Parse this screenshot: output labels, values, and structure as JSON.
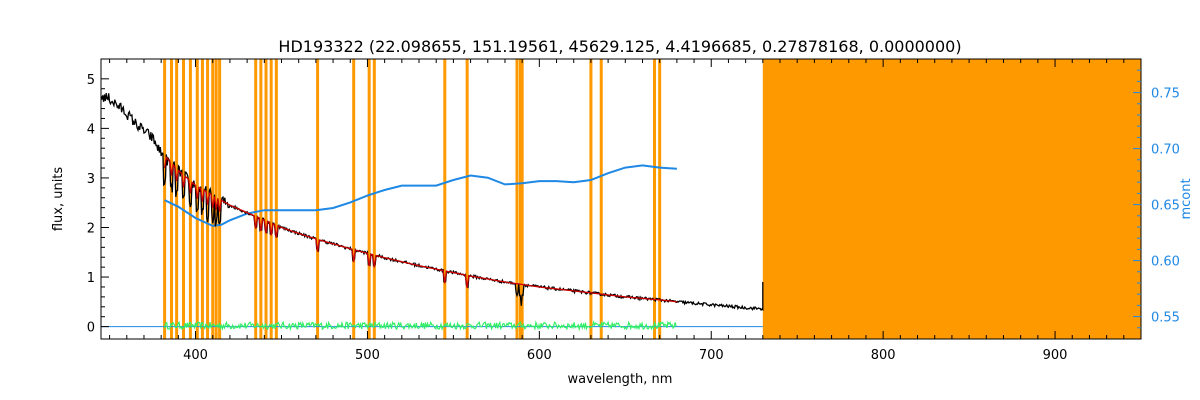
{
  "chart_data": {
    "type": "line",
    "title": "HD193322    (22.098655, 151.19561, 45629.125, 4.4196685, 0.27878168, 0.0000000)",
    "xlabel": "wavelength, nm",
    "ylabel": "flux, units",
    "ylabel_right": "mcont",
    "xlim": [
      345,
      950
    ],
    "ylim": [
      -0.25,
      5.4
    ],
    "ylim_right": [
      0.53,
      0.78
    ],
    "x_ticks": [
      400,
      500,
      600,
      700,
      800,
      900
    ],
    "y_ticks": [
      0,
      1,
      2,
      3,
      4,
      5
    ],
    "y_ticks_right": [
      0.55,
      0.6,
      0.65,
      0.7,
      0.75
    ],
    "colors": {
      "observed": "#000000",
      "model": "#cc0000",
      "residual": "#33ee66",
      "continuum": "#1e88e5",
      "mask": "#ff9900"
    },
    "masked_region": [
      730,
      950
    ],
    "mask_lines": [
      382,
      386,
      389,
      393,
      397,
      401,
      404,
      407,
      410,
      412,
      414,
      435,
      438,
      441,
      444,
      447,
      471,
      492,
      501,
      504,
      545,
      558,
      587,
      589,
      590,
      630,
      636,
      667,
      670
    ],
    "series": [
      {
        "name": "observed",
        "x": [
          345,
          350,
          355,
          360,
          365,
          370,
          375,
          380,
          385,
          390,
          395,
          400,
          410,
          420,
          430,
          440,
          450,
          460,
          470,
          480,
          490,
          500,
          510,
          520,
          530,
          540,
          550,
          560,
          570,
          580,
          590,
          600,
          610,
          620,
          630,
          640,
          650,
          660,
          670,
          680,
          690,
          700,
          710,
          720,
          730
        ],
        "y": [
          4.65,
          4.6,
          4.45,
          4.3,
          4.1,
          3.95,
          3.8,
          3.5,
          3.3,
          3.15,
          3.0,
          2.85,
          2.65,
          2.45,
          2.3,
          2.15,
          2.0,
          1.88,
          1.77,
          1.67,
          1.57,
          1.48,
          1.39,
          1.31,
          1.23,
          1.16,
          1.09,
          1.02,
          0.96,
          0.9,
          0.85,
          0.8,
          0.76,
          0.72,
          0.68,
          0.64,
          0.6,
          0.57,
          0.54,
          0.5,
          0.47,
          0.44,
          0.41,
          0.38,
          0.36
        ]
      },
      {
        "name": "model",
        "x": [
          382,
          390,
          400,
          410,
          420,
          430,
          440,
          450,
          460,
          470,
          480,
          490,
          500,
          510,
          520,
          530,
          540,
          550,
          560,
          570,
          580,
          590,
          600,
          610,
          620,
          630,
          640,
          650,
          660,
          670,
          680
        ],
        "y": [
          3.45,
          3.15,
          2.85,
          2.65,
          2.45,
          2.3,
          2.15,
          2.0,
          1.88,
          1.77,
          1.67,
          1.57,
          1.48,
          1.39,
          1.31,
          1.23,
          1.16,
          1.09,
          1.02,
          0.96,
          0.9,
          0.85,
          0.8,
          0.76,
          0.72,
          0.68,
          0.64,
          0.6,
          0.57,
          0.54,
          0.5
        ]
      },
      {
        "name": "residual",
        "x": [
          382,
          680
        ],
        "y": [
          0.02,
          0.02
        ]
      },
      {
        "name": "continuum",
        "axis": "right",
        "x": [
          382,
          390,
          400,
          410,
          415,
          420,
          430,
          440,
          450,
          460,
          470,
          480,
          490,
          500,
          510,
          520,
          530,
          540,
          550,
          560,
          570,
          580,
          590,
          600,
          610,
          620,
          630,
          640,
          650,
          660,
          670,
          680
        ],
        "y": [
          0.654,
          0.648,
          0.638,
          0.631,
          0.632,
          0.636,
          0.642,
          0.645,
          0.645,
          0.645,
          0.645,
          0.647,
          0.652,
          0.658,
          0.663,
          0.667,
          0.667,
          0.667,
          0.672,
          0.676,
          0.674,
          0.668,
          0.669,
          0.671,
          0.671,
          0.67,
          0.672,
          0.678,
          0.683,
          0.685,
          0.683,
          0.682
        ]
      }
    ]
  }
}
